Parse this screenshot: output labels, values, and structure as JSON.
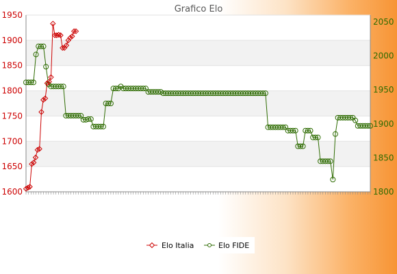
{
  "chart_data": {
    "type": "line",
    "title": "Grafico Elo",
    "xlabel": "",
    "ylabel_left": "",
    "ylabel_right": "",
    "left_axis": {
      "min": 1600,
      "max": 1950,
      "ticks": [
        1600,
        1650,
        1700,
        1750,
        1800,
        1850,
        1900,
        1950
      ],
      "color": "#cc0000"
    },
    "right_axis": {
      "min": 1800,
      "max": 2060,
      "ticks": [
        1800,
        1850,
        1900,
        1950,
        2000,
        2050
      ],
      "color": "#2d6b00"
    },
    "grid": "horizontal bands",
    "legend_position": "bottom-center",
    "x_labels_note": "overlapping rotated date labels, illegible",
    "series": [
      {
        "name": "Elo Italia",
        "axis": "left",
        "color": "#cc0000",
        "marker": "diamond",
        "values": [
          1606,
          1608,
          1610,
          1655,
          1658,
          1668,
          1683,
          1685,
          1758,
          1782,
          1785,
          1815,
          1818,
          1827,
          1933,
          1910,
          1910,
          1911,
          1910,
          1885,
          1885,
          1890,
          1900,
          1905,
          1908,
          1918,
          1918
        ]
      },
      {
        "name": "Elo FIDE",
        "axis": "right",
        "color": "#2d6b00",
        "marker": "circle",
        "values": [
          1961,
          1961,
          1961,
          1961,
          2002,
          2014,
          2014,
          2014,
          1984,
          1958,
          1955,
          1955,
          1955,
          1955,
          1955,
          1955,
          1912,
          1912,
          1912,
          1912,
          1912,
          1912,
          1912,
          1906,
          1906,
          1907,
          1907,
          1896,
          1896,
          1896,
          1896,
          1896,
          1930,
          1930,
          1930,
          1952,
          1952,
          1952,
          1955,
          1952,
          1952,
          1952,
          1952,
          1952,
          1952,
          1952,
          1952,
          1952,
          1952,
          1947,
          1947,
          1947,
          1947,
          1947,
          1947,
          1945,
          1945,
          1945,
          1945,
          1945,
          1945,
          1945,
          1945,
          1945,
          1945,
          1945,
          1945,
          1945,
          1945,
          1945,
          1945,
          1945,
          1945,
          1945,
          1945,
          1945,
          1945,
          1945,
          1945,
          1945,
          1945,
          1945,
          1945,
          1945,
          1945,
          1945,
          1945,
          1945,
          1945,
          1945,
          1945,
          1945,
          1945,
          1945,
          1945,
          1945,
          1945,
          1895,
          1895,
          1895,
          1895,
          1895,
          1895,
          1895,
          1895,
          1890,
          1890,
          1890,
          1890,
          1867,
          1867,
          1867,
          1890,
          1890,
          1890,
          1880,
          1880,
          1880,
          1845,
          1845,
          1845,
          1845,
          1845,
          1818,
          1885,
          1909,
          1909,
          1909,
          1909,
          1909,
          1909,
          1909,
          1905,
          1897,
          1897,
          1897,
          1897,
          1897,
          1897
        ]
      }
    ]
  }
}
